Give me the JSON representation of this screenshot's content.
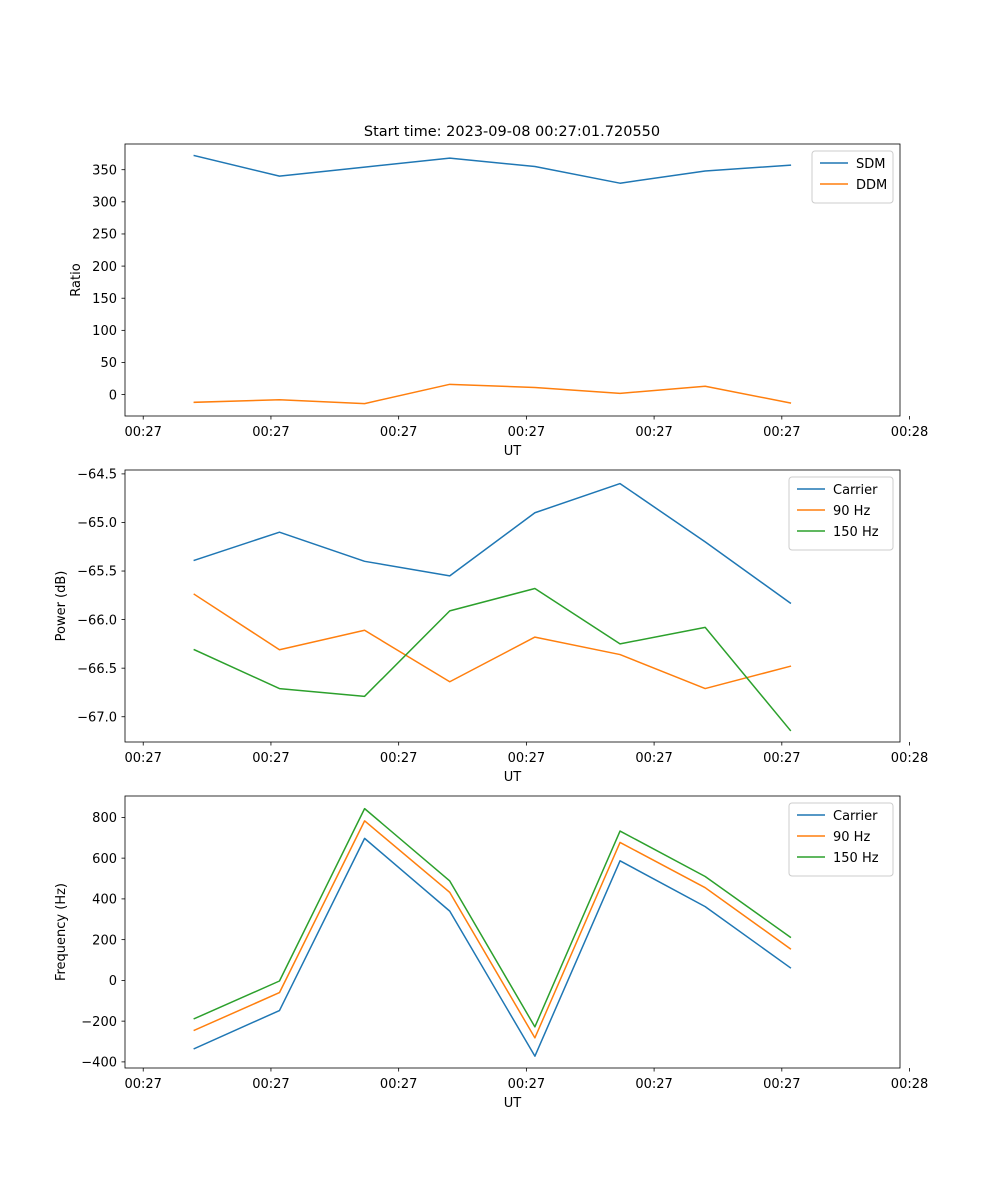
{
  "figure_title": "Start time: 2023-09-08 00:27:01.720550",
  "colors": {
    "c0": "#1f77b4",
    "c1": "#ff7f0e",
    "c2": "#2ca02c",
    "axis": "#000000"
  },
  "chart_data": [
    {
      "type": "line",
      "title": "Start time: 2023-09-08 00:27:01.720550",
      "xlabel": "UT",
      "ylabel": "Ratio",
      "x": [
        1,
        2,
        3,
        4,
        5,
        6,
        7,
        8
      ],
      "xlim": [
        0.186,
        9.288
      ],
      "ylim": [
        -33.3,
        390
      ],
      "x_tick_positions": [
        0.4,
        1.9,
        3.4,
        4.9,
        6.4,
        7.9,
        9.4
      ],
      "x_tick_labels": [
        "00:27",
        "00:27",
        "00:27",
        "00:27",
        "00:27",
        "00:27",
        "00:28"
      ],
      "y_ticks": [
        0,
        50,
        100,
        150,
        200,
        250,
        300,
        350
      ],
      "y_tick_labels": [
        "0",
        "50",
        "100",
        "150",
        "200",
        "250",
        "300",
        "350"
      ],
      "legend_position": "top-right",
      "series": [
        {
          "name": "SDM",
          "color": "#1f77b4",
          "values": [
            372,
            340,
            354,
            368,
            355,
            329,
            348,
            357
          ]
        },
        {
          "name": "DDM",
          "color": "#ff7f0e",
          "values": [
            -12,
            -8,
            -14,
            16,
            11,
            2,
            13,
            -13
          ]
        }
      ]
    },
    {
      "type": "line",
      "xlabel": "UT",
      "ylabel": "Power (dB)",
      "x": [
        1,
        2,
        3,
        4,
        5,
        6,
        7,
        8
      ],
      "xlim": [
        0.186,
        9.288
      ],
      "ylim": [
        -67.26,
        -64.46
      ],
      "x_tick_positions": [
        0.4,
        1.9,
        3.4,
        4.9,
        6.4,
        7.9,
        9.4
      ],
      "x_tick_labels": [
        "00:27",
        "00:27",
        "00:27",
        "00:27",
        "00:27",
        "00:27",
        "00:28"
      ],
      "y_ticks": [
        -64.5,
        -65.0,
        -65.5,
        -66.0,
        -66.5,
        -67.0
      ],
      "y_tick_labels": [
        "−64.5",
        "−65.0",
        "−65.5",
        "−66.0",
        "−66.5",
        "−67.0"
      ],
      "legend_position": "top-right",
      "series": [
        {
          "name": "Carrier",
          "color": "#1f77b4",
          "values": [
            -65.39,
            -65.1,
            -65.4,
            -65.55,
            -64.9,
            -64.6,
            -65.2,
            -65.83
          ]
        },
        {
          "name": "90 Hz",
          "color": "#ff7f0e",
          "values": [
            -65.74,
            -66.31,
            -66.11,
            -66.64,
            -66.18,
            -66.36,
            -66.71,
            -66.48
          ]
        },
        {
          "name": "150 Hz",
          "color": "#2ca02c",
          "values": [
            -66.31,
            -66.71,
            -66.79,
            -65.91,
            -65.68,
            -66.25,
            -66.08,
            -67.14
          ]
        }
      ]
    },
    {
      "type": "line",
      "xlabel": "UT",
      "ylabel": "Frequency (Hz)",
      "x": [
        1,
        2,
        3,
        4,
        5,
        6,
        7,
        8
      ],
      "xlim": [
        0.186,
        9.288
      ],
      "ylim": [
        -430,
        905
      ],
      "x_tick_positions": [
        0.4,
        1.9,
        3.4,
        4.9,
        6.4,
        7.9,
        9.4
      ],
      "x_tick_labels": [
        "00:27",
        "00:27",
        "00:27",
        "00:27",
        "00:27",
        "00:27",
        "00:28"
      ],
      "y_ticks": [
        -400,
        -200,
        0,
        200,
        400,
        600,
        800
      ],
      "y_tick_labels": [
        "−400",
        "−200",
        "0",
        "200",
        "400",
        "600",
        "800"
      ],
      "legend_position": "top-right",
      "series": [
        {
          "name": "Carrier",
          "color": "#1f77b4",
          "values": [
            -335,
            -148,
            697,
            340,
            -372,
            587,
            362,
            62
          ]
        },
        {
          "name": "90 Hz",
          "color": "#ff7f0e",
          "values": [
            -245,
            -60,
            783,
            432,
            -282,
            677,
            455,
            155
          ]
        },
        {
          "name": "150 Hz",
          "color": "#2ca02c",
          "values": [
            -188,
            -3,
            843,
            488,
            -228,
            733,
            510,
            212
          ]
        }
      ]
    }
  ]
}
